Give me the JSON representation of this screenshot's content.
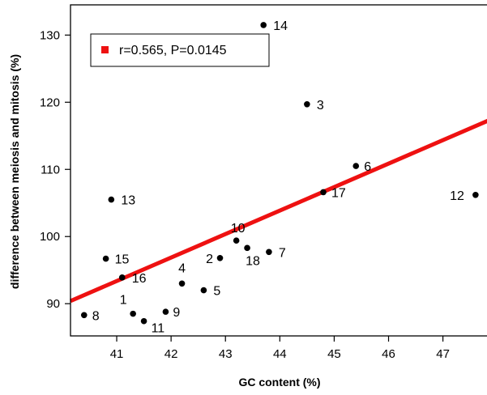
{
  "chart_data": {
    "type": "scatter",
    "xlabel": "GC content (%)",
    "ylabel": "difference between meiosis and mitosis (%)",
    "xlim": [
      40.15,
      47.9
    ],
    "ylim": [
      85.2,
      134.5
    ],
    "x_ticks": [
      41,
      42,
      43,
      44,
      45,
      46,
      47
    ],
    "y_ticks": [
      90,
      100,
      110,
      120,
      130
    ],
    "grid": false,
    "legend": {
      "position": "top-left",
      "text": "r=0.565, P=0.0145",
      "color": "#ee1111"
    },
    "regression_line": {
      "color": "#ee1111",
      "x": [
        40.15,
        47.9
      ],
      "y": [
        90.4,
        117.5
      ]
    },
    "points": [
      {
        "label": "1",
        "x": 41.3,
        "y": 88.5
      },
      {
        "label": "2",
        "x": 42.9,
        "y": 96.8
      },
      {
        "label": "3",
        "x": 44.5,
        "y": 119.7
      },
      {
        "label": "4",
        "x": 42.2,
        "y": 93.0
      },
      {
        "label": "5",
        "x": 42.6,
        "y": 92.0
      },
      {
        "label": "6",
        "x": 45.4,
        "y": 110.5
      },
      {
        "label": "7",
        "x": 43.8,
        "y": 97.7
      },
      {
        "label": "8",
        "x": 40.4,
        "y": 88.3
      },
      {
        "label": "9",
        "x": 41.9,
        "y": 88.8
      },
      {
        "label": "10",
        "x": 43.2,
        "y": 99.4
      },
      {
        "label": "11",
        "x": 41.5,
        "y": 87.4
      },
      {
        "label": "12",
        "x": 47.6,
        "y": 106.2
      },
      {
        "label": "13",
        "x": 40.9,
        "y": 105.5
      },
      {
        "label": "14",
        "x": 43.7,
        "y": 131.5
      },
      {
        "label": "15",
        "x": 40.8,
        "y": 96.7
      },
      {
        "label": "16",
        "x": 41.1,
        "y": 93.9
      },
      {
        "label": "17",
        "x": 44.8,
        "y": 106.6
      },
      {
        "label": "18",
        "x": 43.4,
        "y": 98.3
      }
    ],
    "point_color": "#000000"
  }
}
